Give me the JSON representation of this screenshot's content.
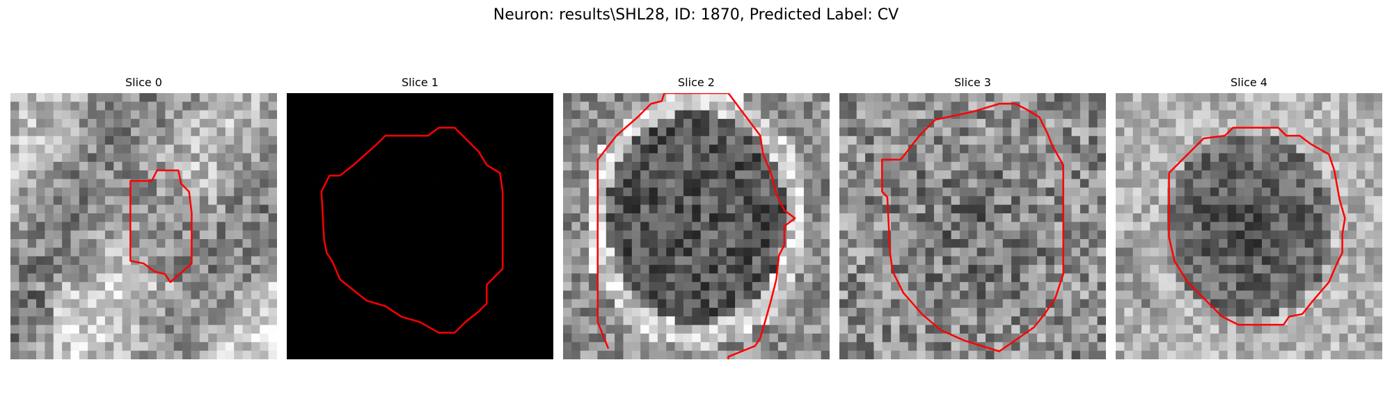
{
  "figure": {
    "title": "Neuron: results\\SHL28, ID: 1870, Predicted Label: CV"
  },
  "contour_color": "#ff0000",
  "panels": [
    {
      "title": "Slice 0",
      "image": "noisy grayscale microscopy patch, mostly mid-to-light gray, dark speckled region near center",
      "contour_shape": "small elongated octagon just right of center"
    },
    {
      "title": "Slice 1",
      "image": "fully black patch",
      "contour_shape": "large rounded blob filling most of the patch"
    },
    {
      "title": "Slice 2",
      "image": "dark speckled round cell body with bright ring around it",
      "contour_shape": "tall ellipse touching the top and bottom edges"
    },
    {
      "title": "Slice 3",
      "image": "medium-gray speckled patch with slightly darker rounded center",
      "contour_shape": "large octagon nearly filling the patch"
    },
    {
      "title": "Slice 4",
      "image": "dark speckled round cell body surrounded by lighter gray",
      "contour_shape": "large octagon centered in the patch"
    }
  ]
}
